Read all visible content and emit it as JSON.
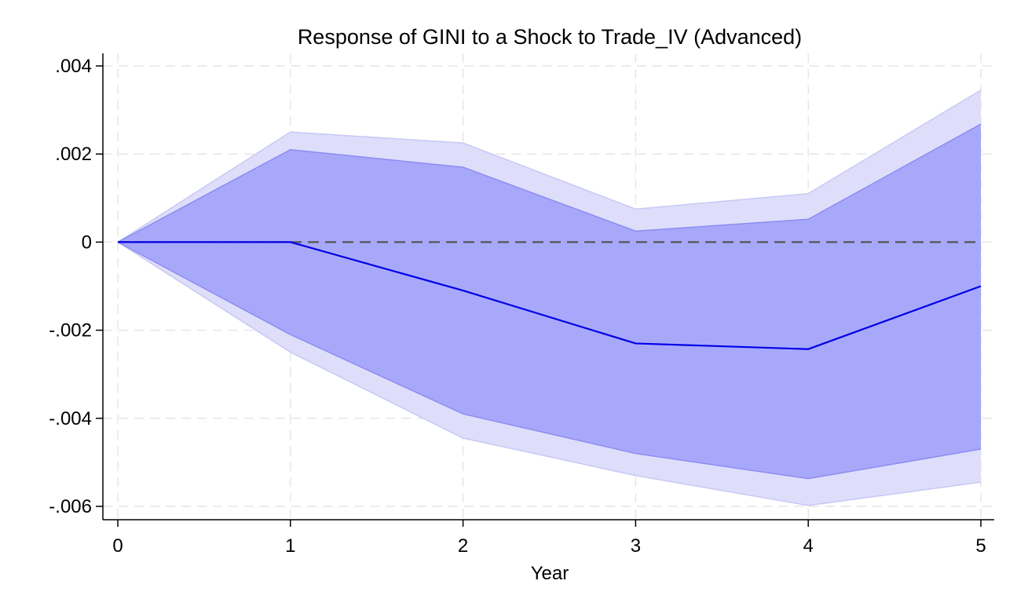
{
  "chart_data": {
    "type": "area",
    "title": "Response of GINI to a Shock to Trade_IV (Advanced)",
    "xlabel": "Year",
    "ylabel": "",
    "x": [
      0,
      1,
      2,
      3,
      4,
      5
    ],
    "xticks": [
      "0",
      "1",
      "2",
      "3",
      "4",
      "5"
    ],
    "yticks": [
      {
        "value": 0.004,
        "label": ".004"
      },
      {
        "value": 0.002,
        "label": ".002"
      },
      {
        "value": 0,
        "label": "0"
      },
      {
        "value": -0.002,
        "label": "-.002"
      },
      {
        "value": -0.004,
        "label": "-.004"
      },
      {
        "value": -0.006,
        "label": "-.006"
      }
    ],
    "xlim": [
      0,
      5
    ],
    "ylim": [
      -0.006,
      0.004
    ],
    "grid": true,
    "zero_line": {
      "value": 0,
      "style": "dashed"
    },
    "series": [
      {
        "role": "outer-band",
        "upper": [
          0,
          0.0025,
          0.00225,
          0.00075,
          0.0011,
          0.00345
        ],
        "lower": [
          0,
          -0.0025,
          -0.00445,
          -0.0053,
          -0.00598,
          -0.00545
        ]
      },
      {
        "role": "inner-band",
        "upper": [
          0,
          0.0021,
          0.0017,
          0.00025,
          0.00052,
          0.00268
        ],
        "lower": [
          0,
          -0.0021,
          -0.0039,
          -0.0048,
          -0.00537,
          -0.0047
        ]
      },
      {
        "role": "irf-line",
        "values": [
          0,
          0,
          -0.0011,
          -0.0023,
          -0.00243,
          -0.001
        ]
      }
    ],
    "colors": {
      "outer_band": "#dedefb",
      "inner_band": "#a8a8fb",
      "inner_band_edge": "#8c8cf2",
      "outer_band_edge": "#c8c8f5",
      "line": "#0000e6",
      "zero_line": "#555555",
      "grid": "#e6e6e6",
      "axis": "#000000"
    }
  }
}
